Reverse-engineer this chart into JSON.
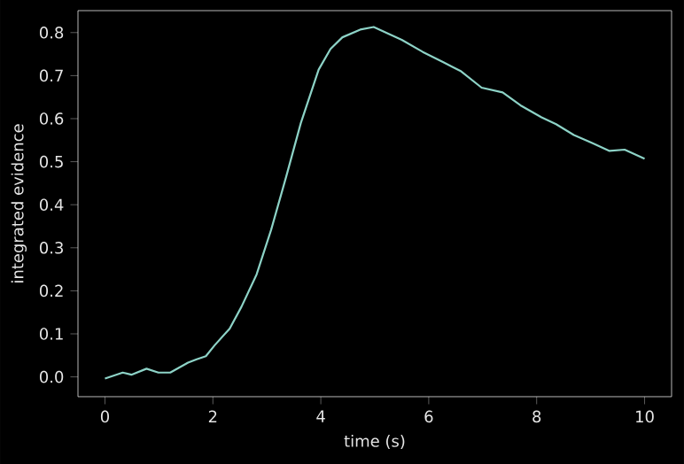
{
  "chart_data": {
    "type": "line",
    "xlabel": "time (s)",
    "ylabel": "integrated evidence",
    "x": [
      0,
      0.33,
      0.49,
      0.77,
      0.99,
      1.21,
      1.54,
      1.7,
      1.87,
      2.03,
      2.31,
      2.53,
      2.81,
      3.08,
      3.36,
      3.63,
      3.96,
      4.18,
      4.4,
      4.73,
      4.98,
      5.5,
      5.89,
      6.27,
      6.6,
      6.98,
      7.37,
      7.7,
      8.09,
      8.36,
      8.69,
      9.02,
      9.35,
      9.63,
      10.0
    ],
    "series": [
      {
        "color": "#8dd3c7",
        "values": [
          -0.004,
          0.01,
          0.005,
          0.019,
          0.01,
          0.01,
          0.033,
          0.041,
          0.048,
          0.073,
          0.112,
          0.163,
          0.238,
          0.342,
          0.466,
          0.59,
          0.714,
          0.762,
          0.789,
          0.807,
          0.813,
          0.783,
          0.755,
          0.731,
          0.71,
          0.672,
          0.661,
          0.631,
          0.603,
          0.587,
          0.562,
          0.544,
          0.525,
          0.528,
          0.507
        ]
      }
    ],
    "xlim": [
      -0.5,
      10.5
    ],
    "ylim": [
      -0.046,
      0.851
    ],
    "xticks": [
      0,
      2,
      4,
      6,
      8,
      10
    ],
    "yticks": [
      {
        "value": 0,
        "label": "0.0"
      },
      0.1,
      0.2,
      0.3,
      0.4,
      0.5,
      0.6,
      0.7,
      0.8
    ],
    "grid": false,
    "marker": "none",
    "line_style": "solid"
  }
}
